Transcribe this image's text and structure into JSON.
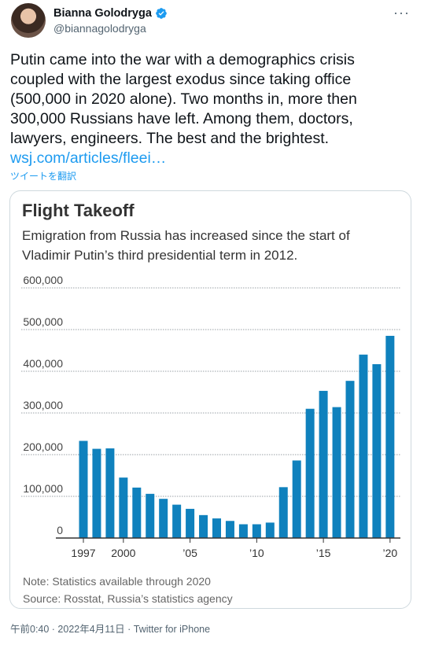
{
  "tweet": {
    "author_name": "Bianna Golodryga",
    "author_handle": "@biannagolodryga",
    "text_lines": [
      "Putin came into the war with a demographics crisis",
      "coupled with the largest exodus since taking office",
      "(500,000 in 2020 alone). Two months in, more then",
      "300,000 Russians have left. Among them, doctors,",
      "lawyers, engineers. The best and the brightest."
    ],
    "link_text": "wsj.com/articles/fleei…",
    "translate_label": "ツイートを翻訳",
    "footer": "午前0:40 · 2022年4月11日 · Twitter for iPhone",
    "more_icon": "more-icon",
    "verified_color": "#1d9bf0"
  },
  "chart_data": {
    "type": "bar",
    "title": "Flight Takeoff",
    "subtitle_lines": [
      "Emigration from Russia has increased since the start of",
      "Vladimir Putin’s third presidential term in 2012."
    ],
    "categories": [
      1997,
      1998,
      1999,
      2000,
      2001,
      2002,
      2003,
      2004,
      2005,
      2006,
      2007,
      2008,
      2009,
      2010,
      2011,
      2012,
      2013,
      2014,
      2015,
      2016,
      2017,
      2018,
      2019,
      2020
    ],
    "values": [
      233000,
      214000,
      215000,
      145000,
      121000,
      106000,
      94000,
      80000,
      70000,
      55000,
      47000,
      41000,
      33000,
      33000,
      37000,
      122000,
      186000,
      310000,
      353000,
      314000,
      377000,
      440000,
      417000,
      485000
    ],
    "ylim": [
      0,
      600000
    ],
    "y_ticks": [
      0,
      100000,
      200000,
      300000,
      400000,
      500000,
      600000
    ],
    "y_tick_labels": [
      "0",
      "100,000",
      "200,000",
      "300,000",
      "400,000",
      "500,000",
      "600,000"
    ],
    "x_tick_labels": [
      {
        "year": 1997,
        "label": "1997"
      },
      {
        "year": 2000,
        "label": "2000"
      },
      {
        "year": 2005,
        "label": "’05"
      },
      {
        "year": 2010,
        "label": "’10"
      },
      {
        "year": 2015,
        "label": "’15"
      },
      {
        "year": 2020,
        "label": "’20"
      }
    ],
    "bar_color": "#0f81bd",
    "grid": true,
    "note": "Note: Statistics available through 2020",
    "source": "Source: Rosstat, Russia’s statistics agency"
  }
}
